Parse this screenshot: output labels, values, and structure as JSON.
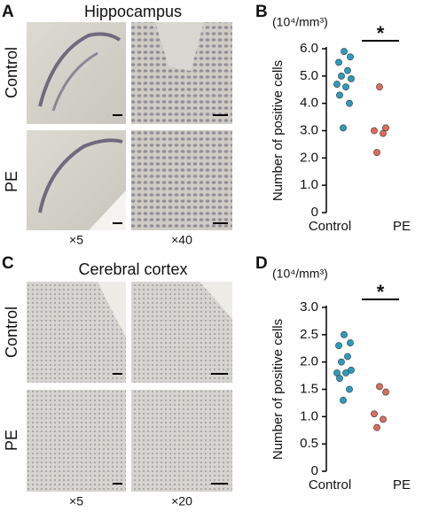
{
  "panels": [
    {
      "letter": "A",
      "title": "Hippocampus",
      "rows": [
        "Control",
        "PE"
      ],
      "magnifications": [
        "×5",
        "×40"
      ]
    },
    {
      "letter": "C",
      "title": "Cerebral cortex",
      "rows": [
        "Control",
        "PE"
      ],
      "magnifications": [
        "×5",
        "×20"
      ]
    }
  ],
  "chart_data": [
    {
      "type": "strip",
      "letter": "B",
      "unit": "(10⁴/mm³)",
      "y_label": "Number of positive cells",
      "categories": [
        "Control",
        "PE"
      ],
      "points": [
        [
          5.9,
          5.7,
          5.5,
          5.2,
          5.0,
          4.9,
          4.7,
          4.6,
          4.3,
          4.0,
          3.1
        ],
        [
          4.6,
          3.1,
          3.0,
          2.9,
          2.2
        ]
      ],
      "colors": [
        "#2a9dbf",
        "#de6b5e"
      ],
      "significance": "*",
      "ylim": [
        0,
        6
      ],
      "yticks": [
        0,
        {
          "value": 1,
          "label": "1.0"
        },
        {
          "value": 2,
          "label": "2.0"
        },
        {
          "value": 3,
          "label": "3.0"
        },
        {
          "value": 4,
          "label": "4.0"
        },
        {
          "value": 5,
          "label": "5.0"
        },
        {
          "value": 6,
          "label": "6.0"
        }
      ]
    },
    {
      "type": "strip",
      "letter": "D",
      "unit": "(10⁴/mm³)",
      "y_label": "Number of positive cells",
      "categories": [
        "Control",
        "PE"
      ],
      "points": [
        [
          2.5,
          2.35,
          2.3,
          2.1,
          2.0,
          1.85,
          1.8,
          1.8,
          1.7,
          1.5,
          1.3
        ],
        [
          1.55,
          1.45,
          1.05,
          0.95,
          0.8
        ]
      ],
      "colors": [
        "#2a9dbf",
        "#de6b5e"
      ],
      "significance": "*",
      "ylim": [
        0,
        3
      ],
      "yticks": [
        0,
        0.5,
        {
          "value": 1,
          "label": "1.0"
        },
        1.5,
        {
          "value": 2,
          "label": "2.0"
        },
        2.5,
        {
          "value": 3,
          "label": "3.0"
        }
      ]
    }
  ]
}
